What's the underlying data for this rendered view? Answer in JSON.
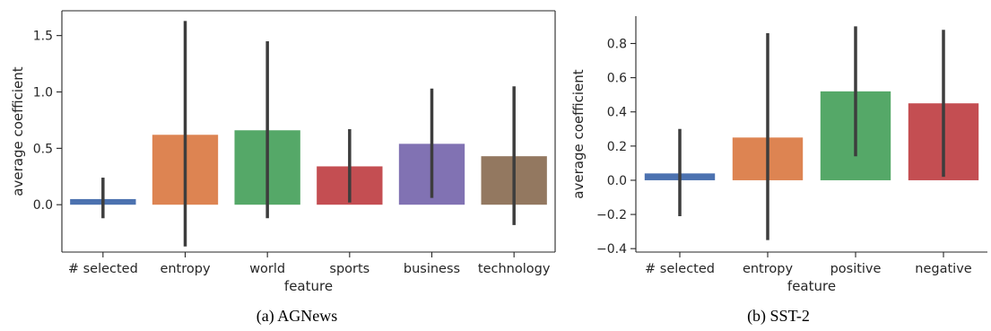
{
  "chart_data": [
    {
      "type": "bar",
      "caption": "(a) AGNews",
      "xlabel": "feature",
      "ylabel": "average coefficient",
      "ylim": [
        -0.42,
        1.72
      ],
      "yticks": [
        0.0,
        0.5,
        1.0,
        1.5
      ],
      "ytick_labels": [
        "0.0",
        "0.5",
        "1.0",
        "1.5"
      ],
      "categories": [
        "# selected",
        "entropy",
        "world",
        "sports",
        "business",
        "technology"
      ],
      "values": [
        0.05,
        0.62,
        0.66,
        0.34,
        0.54,
        0.43
      ],
      "error_low": [
        -0.12,
        -0.37,
        -0.12,
        0.02,
        0.06,
        -0.18
      ],
      "error_high": [
        0.24,
        1.63,
        1.45,
        0.67,
        1.03,
        1.05
      ],
      "colors": [
        "#4c72b0",
        "#dd8452",
        "#55a868",
        "#c44e52",
        "#8172b3",
        "#937860"
      ],
      "grid": false
    },
    {
      "type": "bar",
      "caption": "(b) SST-2",
      "xlabel": "feature",
      "ylabel": "average coefficient",
      "ylim": [
        -0.42,
        0.96
      ],
      "yticks": [
        -0.4,
        -0.2,
        0.0,
        0.2,
        0.4,
        0.6,
        0.8
      ],
      "ytick_labels": [
        "−0.4",
        "−0.2",
        "0.0",
        "0.2",
        "0.4",
        "0.6",
        "0.8"
      ],
      "categories": [
        "# selected",
        "entropy",
        "positive",
        "negative"
      ],
      "values": [
        0.04,
        0.25,
        0.52,
        0.45
      ],
      "error_low": [
        -0.21,
        -0.35,
        0.14,
        0.02
      ],
      "error_high": [
        0.3,
        0.86,
        0.9,
        0.88
      ],
      "colors": [
        "#4c72b0",
        "#dd8452",
        "#55a868",
        "#c44e52"
      ],
      "grid": false
    }
  ]
}
